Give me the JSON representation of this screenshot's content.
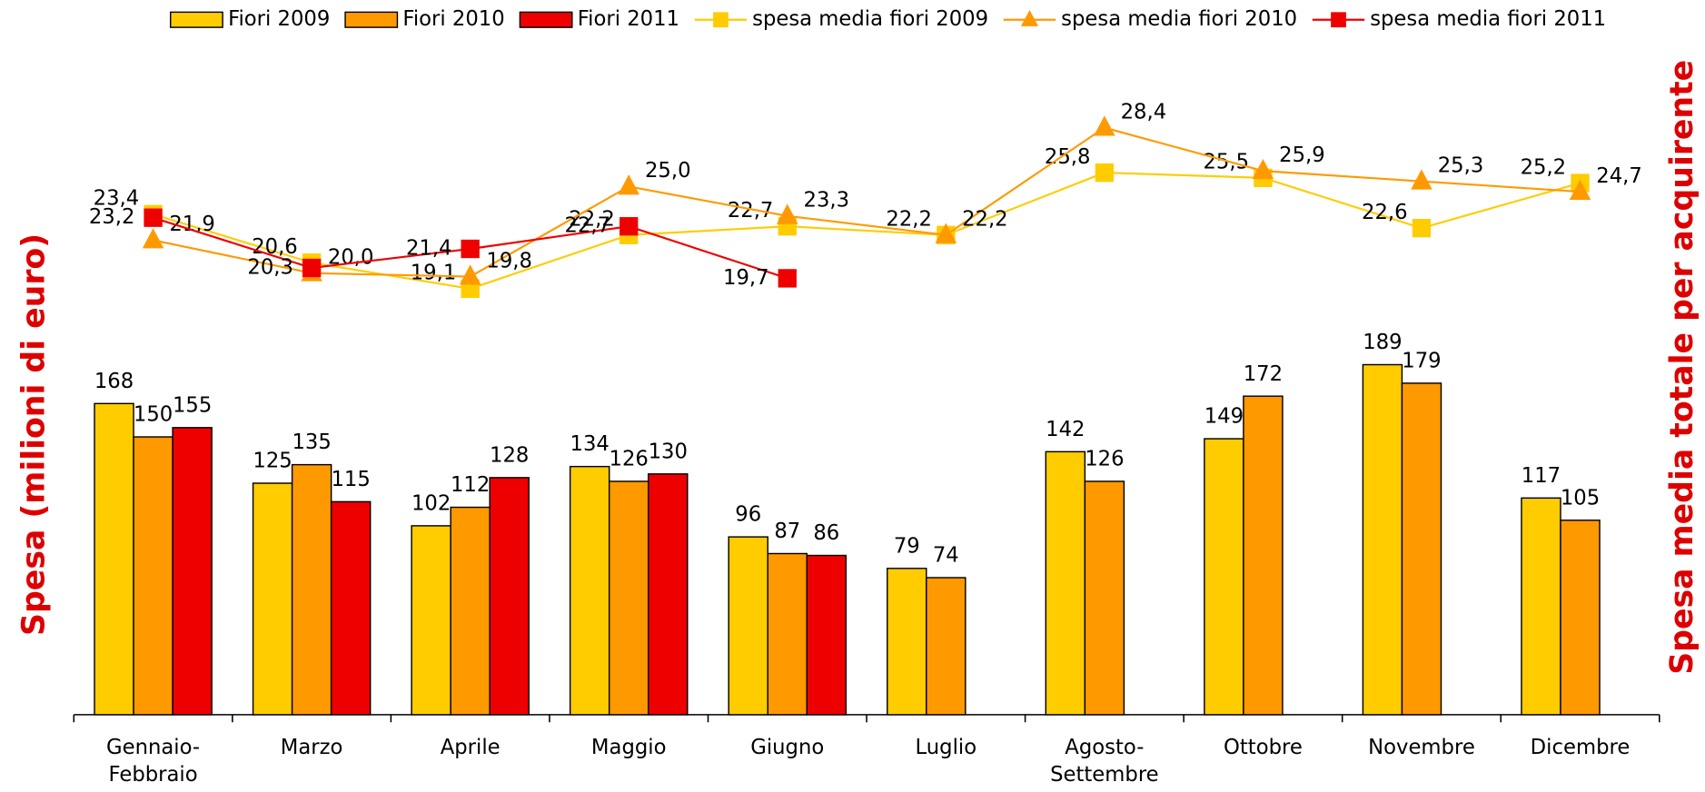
{
  "chart_data": {
    "type": "bar",
    "y_label": "Spesa (milioni di euro)",
    "y2_label": "Spesa media totale per acquirente",
    "categories": [
      "Gennaio-Febbraio",
      "Marzo",
      "Aprile",
      "Maggio",
      "Giugno",
      "Luglio",
      "Agosto-Settembre",
      "Ottobre",
      "Novembre",
      "Dicembre"
    ],
    "ylim": [
      0,
      360
    ],
    "y2lim": [
      -5.5,
      33
    ],
    "legend": "top",
    "series": [
      {
        "name": "Fiori 2009",
        "type": "bar",
        "color": "#ffcc00",
        "values": [
          168,
          125,
          102,
          134,
          96,
          79,
          142,
          149,
          189,
          117
        ]
      },
      {
        "name": "Fiori 2010",
        "type": "bar",
        "color": "#ff9900",
        "values": [
          150,
          135,
          112,
          126,
          87,
          74,
          126,
          172,
          179,
          105
        ]
      },
      {
        "name": "Fiori 2011",
        "type": "bar",
        "color": "#ee0000",
        "values": [
          155,
          115,
          128,
          130,
          86,
          null,
          null,
          null,
          null,
          null
        ]
      },
      {
        "name": "spesa media fiori 2009",
        "type": "line",
        "axis": "y2",
        "marker": "square",
        "color": "#ffcc00",
        "values": [
          23.4,
          20.6,
          19.1,
          22.2,
          22.7,
          22.2,
          25.8,
          25.5,
          22.6,
          25.2
        ],
        "value_labels": [
          "23,4",
          "20,6",
          "19,1",
          "22,2",
          "22,7",
          "22,2",
          "25,8",
          "25,5",
          "22,6",
          "25,2"
        ]
      },
      {
        "name": "spesa media fiori 2010",
        "type": "line",
        "axis": "y2",
        "marker": "triangle",
        "color": "#ff9900",
        "values": [
          21.9,
          20.0,
          19.8,
          25.0,
          23.3,
          22.2,
          28.4,
          25.9,
          25.3,
          24.7
        ],
        "value_labels": [
          "21,9",
          "20,0",
          "19,8",
          "25,0",
          "23,3",
          "22,2",
          "28,4",
          "25,9",
          "25,3",
          "24,7"
        ]
      },
      {
        "name": "spesa media fiori 2011",
        "type": "line",
        "axis": "y2",
        "marker": "square",
        "color": "#ee0000",
        "values": [
          23.2,
          20.3,
          21.4,
          22.7,
          19.7,
          null,
          null,
          null,
          null,
          null
        ],
        "value_labels": [
          "23,2",
          "20,3",
          "21,4",
          "22,7",
          "19,7",
          null,
          null,
          null,
          null,
          null
        ]
      }
    ]
  }
}
